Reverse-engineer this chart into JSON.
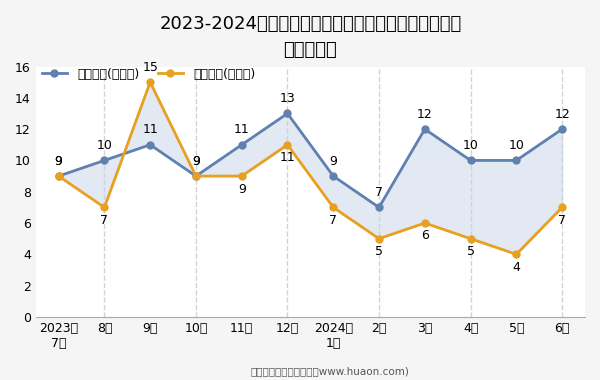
{
  "title_line1": "2023-2024年合肥经济技术开发区商品收发货人所在地",
  "title_line2": "进、出口额",
  "x_labels": [
    "2023年\n7月",
    "8月",
    "9月",
    "10月",
    "11月",
    "12月",
    "2024年\n1月",
    "2月",
    "3月",
    "4月",
    "5月",
    "6月"
  ],
  "export_values": [
    9,
    10,
    11,
    9,
    11,
    13,
    9,
    7,
    12,
    10,
    10,
    12
  ],
  "import_values": [
    9,
    7,
    15,
    9,
    9,
    11,
    7,
    5,
    6,
    5,
    4,
    7
  ],
  "export_label": "出口总额(亿美元)",
  "import_label": "进口总额(亿美元)",
  "export_color": "#6080b0",
  "import_color": "#e8a020",
  "fill_color": "#c8d4e8",
  "fill_alpha": 0.5,
  "ylim": [
    0,
    16
  ],
  "yticks": [
    0,
    2,
    4,
    6,
    8,
    10,
    12,
    14,
    16
  ],
  "footer": "制图：华经产业研究院（www.huaon.com)",
  "background_color": "#f5f5f5",
  "plot_bg_color": "#ffffff",
  "title_fontsize": 13,
  "tick_fontsize": 9,
  "legend_fontsize": 9,
  "annotation_fontsize": 9,
  "dashed_x_indices": [
    1,
    3,
    5,
    7,
    9,
    11
  ]
}
